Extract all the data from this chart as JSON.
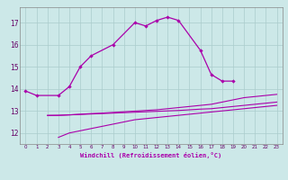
{
  "xlabel": "Windchill (Refroidissement éolien,°C)",
  "bg_color": "#cce8e8",
  "grid_color": "#aacccc",
  "line_color": "#aa00aa",
  "ylim": [
    11.5,
    17.7
  ],
  "xlim": [
    -0.5,
    23.5
  ],
  "yticks": [
    12,
    13,
    14,
    15,
    16,
    17
  ],
  "xticks": [
    0,
    1,
    2,
    3,
    4,
    5,
    6,
    7,
    8,
    9,
    10,
    11,
    12,
    13,
    14,
    15,
    16,
    17,
    18,
    19,
    20,
    21,
    22,
    23
  ],
  "l1_x": [
    0,
    1,
    3,
    4,
    5,
    6,
    8,
    10,
    11,
    12,
    13,
    14,
    16,
    17,
    18,
    19
  ],
  "l1_y": [
    13.9,
    13.7,
    13.7,
    14.1,
    15.0,
    15.5,
    16.0,
    17.0,
    16.85,
    17.1,
    17.25,
    17.1,
    15.75,
    14.65,
    14.35,
    14.35
  ],
  "l2_x": [
    2,
    3,
    4,
    5,
    6,
    7,
    8,
    9,
    10,
    11,
    12,
    13,
    14,
    15,
    16,
    17,
    18,
    19,
    20,
    21,
    22,
    23
  ],
  "l2_y": [
    12.8,
    12.8,
    12.82,
    12.85,
    12.88,
    12.9,
    12.93,
    12.96,
    12.99,
    13.02,
    13.05,
    13.1,
    13.15,
    13.2,
    13.25,
    13.3,
    13.4,
    13.5,
    13.6,
    13.65,
    13.7,
    13.75
  ],
  "l3_x": [
    2,
    3,
    4,
    5,
    6,
    7,
    8,
    9,
    10,
    11,
    12,
    13,
    14,
    15,
    16,
    17,
    18,
    19,
    20,
    21,
    22,
    23
  ],
  "l3_y": [
    12.79,
    12.8,
    12.82,
    12.84,
    12.86,
    12.88,
    12.9,
    12.92,
    12.94,
    12.96,
    12.98,
    13.0,
    13.02,
    13.05,
    13.08,
    13.1,
    13.15,
    13.2,
    13.25,
    13.3,
    13.35,
    13.4
  ],
  "l4_x": [
    3,
    4,
    5,
    6,
    7,
    8,
    9,
    10,
    11,
    12,
    13,
    14,
    15,
    16,
    17,
    18,
    19,
    20,
    21,
    22,
    23
  ],
  "l4_y": [
    11.8,
    12.0,
    12.1,
    12.2,
    12.3,
    12.4,
    12.5,
    12.6,
    12.65,
    12.7,
    12.75,
    12.8,
    12.85,
    12.9,
    12.95,
    13.0,
    13.05,
    13.1,
    13.15,
    13.2,
    13.25
  ]
}
